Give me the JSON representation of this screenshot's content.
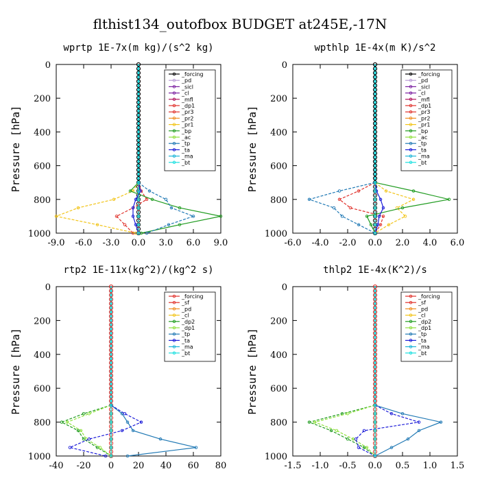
{
  "figure": {
    "title": "flthist134_outofbox  BUDGET at245E,-17N"
  },
  "chart_data": [
    {
      "type": "line",
      "title": "wprtp  1E-7x(m kg)/(s^2 kg)",
      "ylabel": "Pressure [hPa]",
      "xlim": [
        -9,
        9
      ],
      "ylim": [
        1000,
        0
      ],
      "xstep": 3,
      "x_ticks": [
        "-9.0",
        "-6.0",
        "-3.0",
        "0.0",
        "3.0",
        "6.0",
        "9.0"
      ],
      "y_ticks": [
        "0",
        "200",
        "400",
        "600",
        "800",
        "1000"
      ],
      "y": [
        700,
        750,
        800,
        850,
        900,
        950,
        1000
      ],
      "series": [
        {
          "name": "_forcing",
          "color": "#000000",
          "values": [
            0,
            0,
            0,
            0,
            0,
            0,
            0
          ]
        },
        {
          "name": "_pd",
          "color": "#b89ad6",
          "values": [
            0,
            0,
            0,
            0,
            0,
            0,
            0
          ]
        },
        {
          "name": "_sicl",
          "color": "#7a1fa0",
          "values": [
            0,
            0,
            0,
            0,
            0,
            0,
            0
          ]
        },
        {
          "name": "_cl",
          "color": "#7a1fa0",
          "values": [
            0,
            0,
            0,
            0,
            0,
            0,
            0
          ]
        },
        {
          "name": "_mfl",
          "color": "#b0105a",
          "values": [
            0,
            0,
            0,
            0,
            0,
            0,
            0
          ]
        },
        {
          "name": "_dp1",
          "color": "#e0302a",
          "values": [
            0,
            0.3,
            0.9,
            -0.6,
            -2.4,
            -1.5,
            -0.6
          ]
        },
        {
          "name": "_pr3",
          "color": "#e0302a",
          "values": [
            0,
            0,
            0,
            0,
            0,
            0,
            0
          ]
        },
        {
          "name": "_pr2",
          "color": "#f08c1e",
          "values": [
            0,
            0,
            0,
            0,
            0,
            0,
            0
          ]
        },
        {
          "name": "_pr1",
          "color": "#f2c418",
          "values": [
            0,
            -0.6,
            -2.7,
            -6.6,
            -9.0,
            -4.5,
            -0.3
          ]
        },
        {
          "name": "_bp",
          "color": "#1f9b1f",
          "values": [
            0,
            -0.9,
            1.5,
            4.5,
            9.0,
            4.5,
            0.3
          ]
        },
        {
          "name": "_ac",
          "color": "#8ee03c",
          "values": [
            0,
            0,
            0,
            0,
            0,
            0,
            0
          ]
        },
        {
          "name": "_tp",
          "color": "#1f78b4",
          "values": [
            0,
            1.2,
            3.0,
            3.6,
            6.0,
            3.3,
            0.9
          ]
        },
        {
          "name": "_ta",
          "color": "#1a1ad8",
          "values": [
            0,
            0.2,
            -0.3,
            -0.6,
            -0.6,
            -0.3,
            0
          ]
        },
        {
          "name": "_ma",
          "color": "#1ab4d8",
          "values": [
            0,
            0,
            0,
            0,
            0,
            0,
            0
          ]
        },
        {
          "name": "_bt",
          "color": "#19e0e0",
          "values": [
            0,
            0,
            0,
            0,
            0,
            0,
            0
          ]
        }
      ]
    },
    {
      "type": "line",
      "title": "wpthlp  1E-4x(m K)/s^2",
      "ylabel": "Pressure [hPa]",
      "xlim": [
        -6,
        6
      ],
      "ylim": [
        1000,
        0
      ],
      "xstep": 2,
      "x_ticks": [
        "-6.0",
        "-4.0",
        "-2.0",
        "0.0",
        "2.0",
        "4.0",
        "6.0"
      ],
      "y_ticks": [
        "0",
        "200",
        "400",
        "600",
        "800",
        "1000"
      ],
      "y": [
        700,
        750,
        800,
        850,
        900,
        950,
        1000
      ],
      "series": [
        {
          "name": "_forcing",
          "color": "#000000",
          "values": [
            0,
            0,
            0,
            0,
            0,
            0,
            0
          ]
        },
        {
          "name": "_pd",
          "color": "#b89ad6",
          "values": [
            0,
            0,
            0,
            0,
            0,
            0,
            0
          ]
        },
        {
          "name": "_sicl",
          "color": "#7a1fa0",
          "values": [
            0,
            0,
            0,
            0,
            0,
            0,
            0
          ]
        },
        {
          "name": "_cl",
          "color": "#7a1fa0",
          "values": [
            0,
            0,
            0,
            0,
            0,
            0,
            0
          ]
        },
        {
          "name": "_mfl",
          "color": "#b0105a",
          "values": [
            0,
            0,
            0,
            0,
            0,
            0,
            0
          ]
        },
        {
          "name": "_dp1",
          "color": "#e0302a",
          "values": [
            0,
            -1.2,
            -2.6,
            -1.8,
            0.6,
            0.4,
            0
          ]
        },
        {
          "name": "_pr3",
          "color": "#e0302a",
          "values": [
            0,
            0,
            0,
            0,
            0,
            0,
            0
          ]
        },
        {
          "name": "_pr2",
          "color": "#f08c1e",
          "values": [
            0,
            0,
            0,
            0,
            0,
            0,
            0
          ]
        },
        {
          "name": "_pr1",
          "color": "#f2c418",
          "values": [
            0,
            0.8,
            2.8,
            1.6,
            2.2,
            1.0,
            0
          ]
        },
        {
          "name": "_bp",
          "color": "#1f9b1f",
          "values": [
            0,
            2.8,
            5.4,
            2.0,
            -0.6,
            -0.3,
            0
          ]
        },
        {
          "name": "_ac",
          "color": "#8ee03c",
          "values": [
            0,
            0,
            0,
            0,
            0,
            0,
            0
          ]
        },
        {
          "name": "_tp",
          "color": "#1f78b4",
          "values": [
            0,
            -2.6,
            -4.8,
            -3.0,
            -2.4,
            -1.2,
            0
          ]
        },
        {
          "name": "_ta",
          "color": "#1a1ad8",
          "values": [
            0,
            0.1,
            0.4,
            0.6,
            0.3,
            0.2,
            0
          ]
        },
        {
          "name": "_ma",
          "color": "#1ab4d8",
          "values": [
            0,
            0,
            0,
            0,
            0,
            0,
            0
          ]
        },
        {
          "name": "_bt",
          "color": "#19e0e0",
          "values": [
            0,
            0,
            0,
            0,
            0,
            0,
            0
          ]
        }
      ]
    },
    {
      "type": "line",
      "title": "rtp2  1E-11x(kg^2)/(kg^2 s)",
      "ylabel": "Pressure [hPa]",
      "xlim": [
        -40,
        80
      ],
      "ylim": [
        1000,
        0
      ],
      "xstep": 20,
      "x_ticks": [
        "-40",
        "-20",
        "0",
        "20",
        "40",
        "60",
        "80"
      ],
      "y_ticks": [
        "0",
        "200",
        "400",
        "600",
        "800",
        "1000"
      ],
      "y": [
        700,
        750,
        800,
        850,
        900,
        950,
        1000
      ],
      "series": [
        {
          "name": "_forcing",
          "color": "#e0302a",
          "values": [
            0,
            0,
            0,
            0,
            0,
            0,
            0
          ]
        },
        {
          "name": "_sf",
          "color": "#e0302a",
          "values": [
            0,
            0,
            0,
            0,
            0,
            0,
            0
          ]
        },
        {
          "name": "_pd",
          "color": "#f08c1e",
          "values": [
            0,
            0,
            0,
            0,
            0,
            0,
            0
          ]
        },
        {
          "name": "_cl",
          "color": "#f2c418",
          "values": [
            0,
            0,
            0,
            0,
            0,
            0,
            0
          ]
        },
        {
          "name": "_dp2",
          "color": "#1f9b1f",
          "values": [
            0,
            -20,
            -36,
            -24,
            -20,
            -10,
            0
          ]
        },
        {
          "name": "_dp1",
          "color": "#8ee03c",
          "values": [
            0,
            -16,
            -32,
            -22,
            -18,
            -8,
            0
          ]
        },
        {
          "name": "_tp",
          "color": "#1f78b4",
          "values": [
            0,
            8,
            12,
            16,
            36,
            62,
            12
          ]
        },
        {
          "name": "_ta",
          "color": "#1a1ad8",
          "values": [
            0,
            10,
            22,
            8,
            -16,
            -30,
            -4
          ]
        },
        {
          "name": "_ma",
          "color": "#1ab4d8",
          "values": [
            0,
            0,
            0,
            0,
            0,
            0,
            0
          ]
        },
        {
          "name": "_bt",
          "color": "#19e0e0",
          "values": [
            0,
            0,
            0,
            0,
            0,
            0,
            0
          ]
        }
      ]
    },
    {
      "type": "line",
      "title": "thlp2  1E-4x(K^2)/s",
      "ylabel": "Pressure [hPa]",
      "xlim": [
        -1.5,
        1.5
      ],
      "ylim": [
        1000,
        0
      ],
      "xstep": 0.5,
      "x_ticks": [
        "-1.5",
        "-1.0",
        "-0.5",
        "0.0",
        "0.5",
        "1.0",
        "1.5"
      ],
      "y_ticks": [
        "0",
        "200",
        "400",
        "600",
        "800",
        "1000"
      ],
      "y": [
        700,
        750,
        800,
        850,
        900,
        950,
        1000
      ],
      "series": [
        {
          "name": "_forcing",
          "color": "#e0302a",
          "values": [
            0,
            0,
            0,
            0,
            0,
            0,
            0
          ]
        },
        {
          "name": "_sf",
          "color": "#e0302a",
          "values": [
            0,
            0,
            0,
            0,
            0,
            0,
            0
          ]
        },
        {
          "name": "_pd",
          "color": "#f08c1e",
          "values": [
            0,
            0,
            0,
            0,
            0,
            0,
            0
          ]
        },
        {
          "name": "_cl",
          "color": "#f2c418",
          "values": [
            0,
            0,
            0,
            0,
            0,
            0,
            0
          ]
        },
        {
          "name": "_dp2",
          "color": "#1f9b1f",
          "values": [
            0,
            -0.6,
            -1.2,
            -0.8,
            -0.5,
            -0.2,
            0
          ]
        },
        {
          "name": "_dp1",
          "color": "#8ee03c",
          "values": [
            0,
            -0.5,
            -1.1,
            -0.7,
            -0.4,
            -0.15,
            0
          ]
        },
        {
          "name": "_tp",
          "color": "#1f78b4",
          "values": [
            0,
            0.5,
            1.2,
            0.8,
            0.6,
            0.3,
            0
          ]
        },
        {
          "name": "_ta",
          "color": "#1a1ad8",
          "values": [
            0,
            0.3,
            0.8,
            -0.2,
            -0.35,
            -0.3,
            0
          ]
        },
        {
          "name": "_ma",
          "color": "#1ab4d8",
          "values": [
            0,
            0,
            0,
            0,
            0,
            0,
            0
          ]
        },
        {
          "name": "_bt",
          "color": "#19e0e0",
          "values": [
            0,
            0,
            0,
            0,
            0,
            0,
            0
          ]
        }
      ]
    }
  ]
}
